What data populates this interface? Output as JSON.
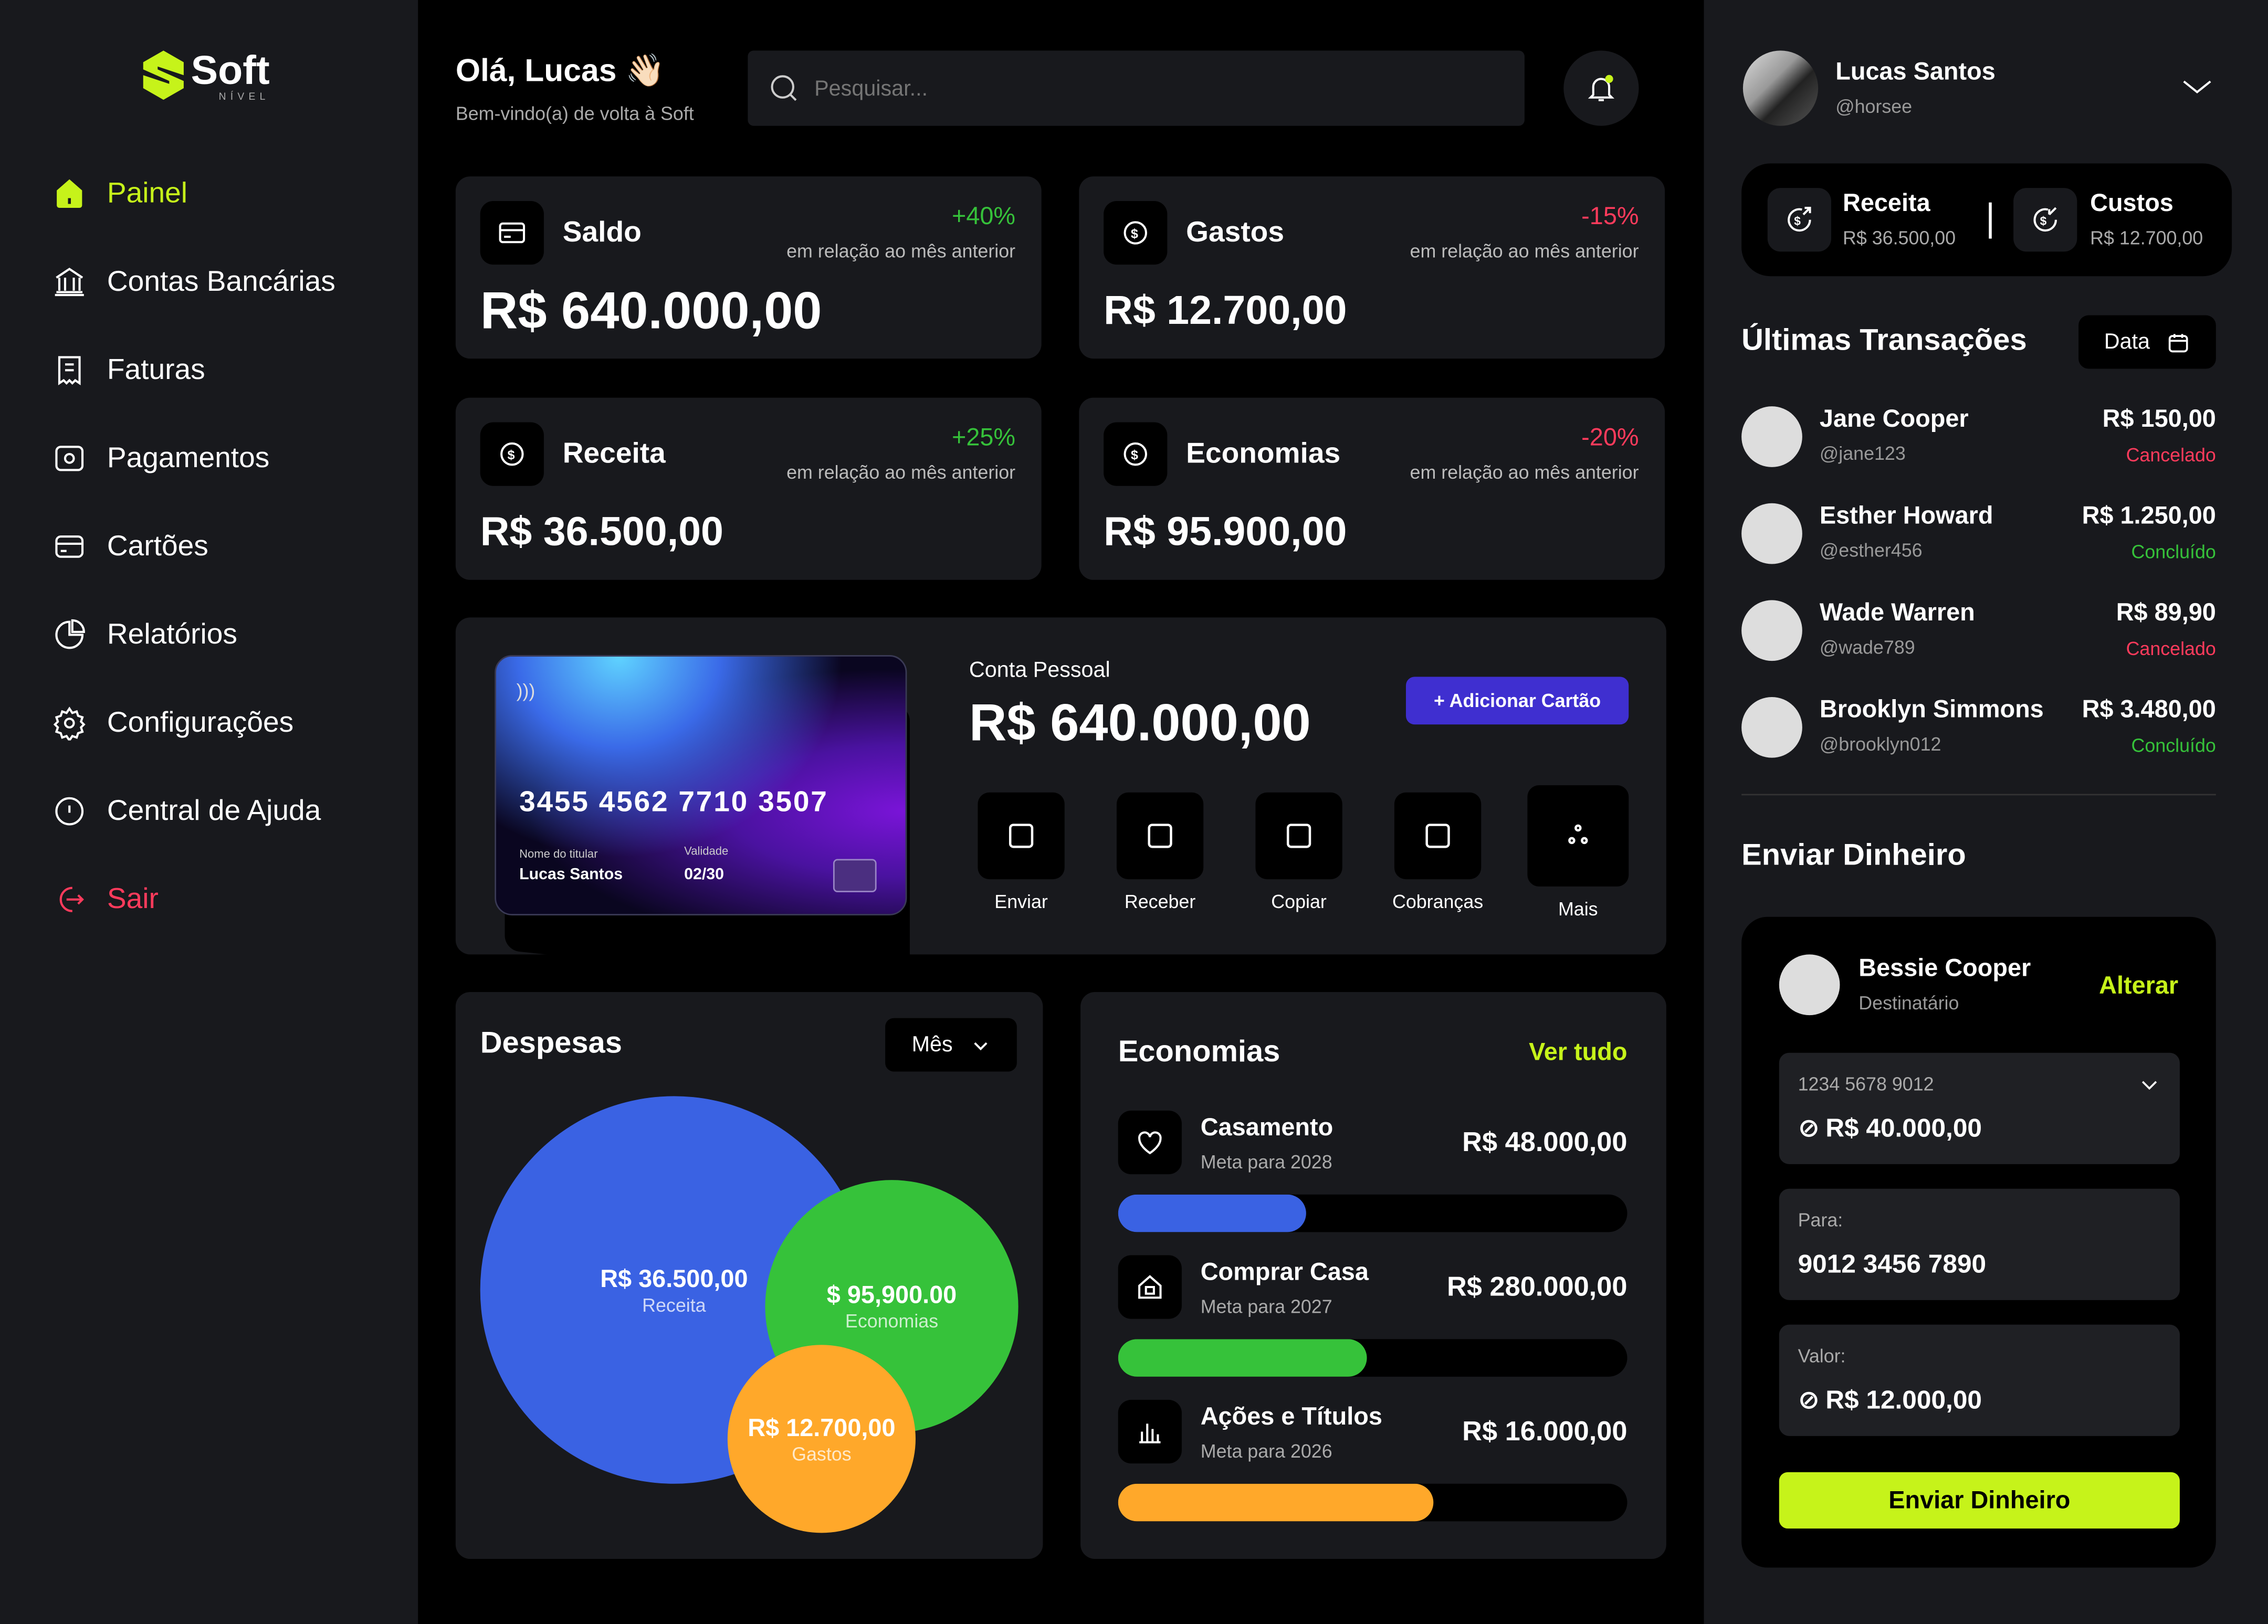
{
  "brand": {
    "name": "Soft",
    "tagline": "NÍVEL",
    "accent": "#c6f31a"
  },
  "sidebar": {
    "items": [
      {
        "label": "Painel",
        "icon": "home-icon",
        "active": true
      },
      {
        "label": "Contas Bancárias",
        "icon": "bank-icon"
      },
      {
        "label": "Faturas",
        "icon": "invoice-icon"
      },
      {
        "label": "Pagamentos",
        "icon": "payment-icon"
      },
      {
        "label": "Cartões",
        "icon": "card-icon"
      },
      {
        "label": "Relatórios",
        "icon": "pie-chart-icon"
      },
      {
        "label": "Configurações",
        "icon": "gear-icon"
      },
      {
        "label": "Central de Ajuda",
        "icon": "info-icon"
      },
      {
        "label": "Sair",
        "icon": "logout-icon",
        "color": "#ff3b5c"
      }
    ]
  },
  "header": {
    "greeting": "Olá, Lucas 👋🏻",
    "subtitle": "Bem-vindo(a) de volta à Soft",
    "search_placeholder": "Pesquisar..."
  },
  "stats": [
    {
      "title": "Saldo",
      "change": "+40%",
      "note": "em relação ao mês anterior",
      "value": "R$ 640.000,00",
      "trend": "up"
    },
    {
      "title": "Gastos",
      "change": "-15%",
      "note": "em relação ao mês anterior",
      "value": "R$ 12.700,00",
      "trend": "down"
    },
    {
      "title": "Receita",
      "change": "+25%",
      "note": "em relação ao mês anterior",
      "value": "R$ 36.500,00",
      "trend": "up"
    },
    {
      "title": "Economias",
      "change": "-20%",
      "note": "em relação ao mês anterior",
      "value": "R$ 95.900,00",
      "trend": "down"
    }
  ],
  "account": {
    "card": {
      "number": "3455 4562 7710 3507",
      "holder_label": "Nome do titular",
      "holder": "Lucas Santos",
      "expiry_label": "Validade",
      "expiry": "02/30"
    },
    "label": "Conta Pessoal",
    "balance": "R$ 640.000,00",
    "add_card": "+ Adicionar Cartão",
    "actions": [
      "Enviar",
      "Receber",
      "Copiar",
      "Cobranças",
      "Mais"
    ]
  },
  "despesas": {
    "title": "Despesas",
    "period": "Mês",
    "bubbles": [
      {
        "value": "R$ 36.500,00",
        "label": "Receita",
        "color": "#3a62e3"
      },
      {
        "value": "$ 95,900.00",
        "label": "Economias",
        "color": "#36c23a"
      },
      {
        "value": "R$ 12.700,00",
        "label": "Gastos",
        "color": "#ffa82a"
      }
    ]
  },
  "economias": {
    "title": "Economias",
    "see_all": "Ver tudo",
    "goals": [
      {
        "name": "Casamento",
        "meta": "Meta para 2028",
        "amount": "R$ 48.000,00",
        "progress": 0.37,
        "color": "#3a62e3",
        "icon": "heart-icon"
      },
      {
        "name": "Comprar Casa",
        "meta": "Meta para 2027",
        "amount": "R$ 280.000,00",
        "progress": 0.49,
        "color": "#36c23a",
        "icon": "house-icon"
      },
      {
        "name": "Ações e Títulos",
        "meta": "Meta para 2026",
        "amount": "R$ 16.000,00",
        "progress": 0.62,
        "color": "#ffa82a",
        "icon": "bar-chart-icon"
      }
    ]
  },
  "profile": {
    "name": "Lucas Santos",
    "handle": "@horsee"
  },
  "summary": {
    "receita_label": "Receita",
    "receita": "R$ 36.500,00",
    "custos_label": "Custos",
    "custos": "R$ 12.700,00"
  },
  "transactions": {
    "title": "Últimas Transações",
    "filter": "Data",
    "items": [
      {
        "name": "Jane Cooper",
        "handle": "@jane123",
        "amount": "R$ 150,00",
        "status": "Cancelado"
      },
      {
        "name": "Esther Howard",
        "handle": "@esther456",
        "amount": "R$ 1.250,00",
        "status": "Concluído"
      },
      {
        "name": "Wade Warren",
        "handle": "@wade789",
        "amount": "R$ 89,90",
        "status": "Cancelado"
      },
      {
        "name": "Brooklyn Simmons",
        "handle": "@brooklyn012",
        "amount": "R$ 3.480,00",
        "status": "Concluído"
      }
    ]
  },
  "send": {
    "title": "Enviar Dinheiro",
    "recipient": "Bessie Cooper",
    "recipient_label": "Destinatário",
    "change": "Alterar",
    "from_account": "1234 5678 9012",
    "from_balance": "R$ 40.000,00",
    "to_label": "Para:",
    "to": "9012 3456 7890",
    "amount_label": "Valor:",
    "amount": "R$ 12.000,00",
    "button": "Enviar Dinheiro"
  },
  "status_colors": {
    "Cancelado": "#ff3b5c",
    "Concluído": "#36c23a"
  }
}
